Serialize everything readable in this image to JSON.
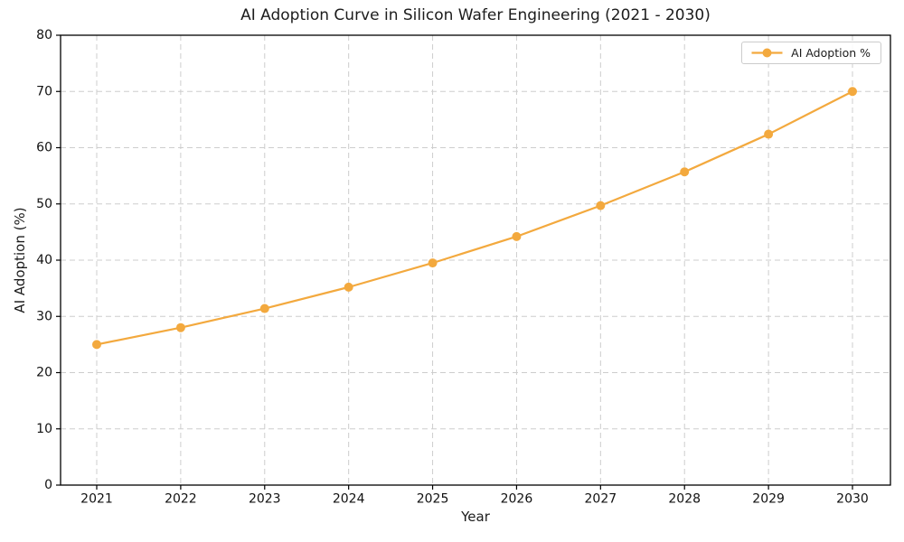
{
  "chart_data": {
    "type": "line",
    "title": "AI Adoption Curve in Silicon Wafer Engineering (2021 - 2030)",
    "xlabel": "Year",
    "ylabel": "AI Adoption (%)",
    "x": [
      2021,
      2022,
      2023,
      2024,
      2025,
      2026,
      2027,
      2028,
      2029,
      2030
    ],
    "series": [
      {
        "name": "AI Adoption %",
        "values": [
          25.0,
          28.0,
          31.4,
          35.2,
          39.5,
          44.2,
          49.7,
          55.7,
          62.4,
          70.0
        ],
        "color": "#F3A93E",
        "marker": "circle",
        "line_width": 2.2,
        "marker_radius": 5
      }
    ],
    "ylim": [
      0,
      80
    ],
    "yticks": [
      0,
      10,
      20,
      30,
      40,
      50,
      60,
      70,
      80
    ],
    "grid": true,
    "grid_style": "dashed",
    "legend": {
      "position": "upper right"
    }
  },
  "colors": {
    "line": "#F3A93E",
    "grid": "#CDCDCD",
    "spine": "#000000",
    "text": "#1C1C1C",
    "background": "#FFFFFF",
    "legend_border": "#CCCCCC"
  }
}
